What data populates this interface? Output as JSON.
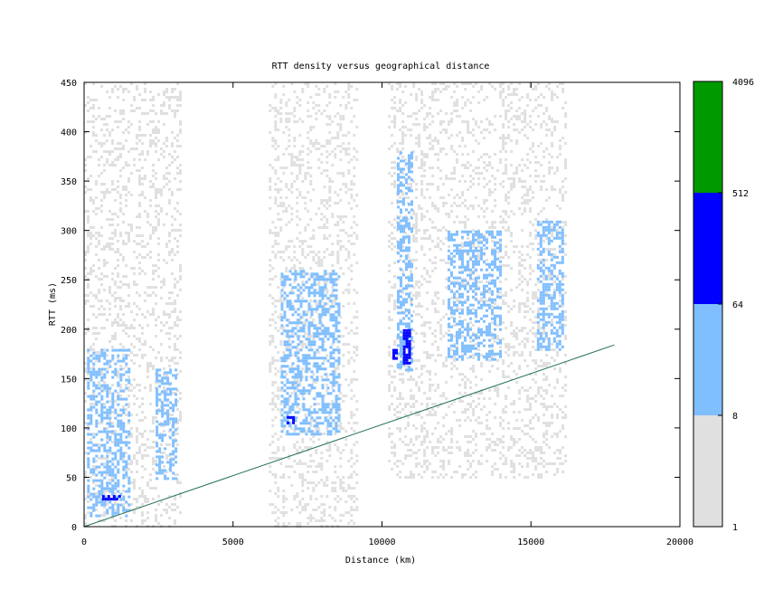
{
  "chart_data": {
    "type": "heatmap",
    "title": "RTT density versus geographical distance",
    "xlabel": "Distance (km)",
    "ylabel": "RTT (ms)",
    "xlim": [
      0,
      20000
    ],
    "ylim": [
      0,
      450
    ],
    "x_ticks": [
      "0",
      "5000",
      "10000",
      "15000",
      "20000"
    ],
    "y_ticks": [
      "0",
      "50",
      "100",
      "150",
      "200",
      "250",
      "300",
      "350",
      "400",
      "450"
    ],
    "grid": false,
    "colorbar": {
      "scale": "log",
      "tick_labels": [
        "1",
        "8",
        "64",
        "512",
        "4096"
      ],
      "bins": [
        {
          "from": 1,
          "to": 8,
          "color": "#e0e0e0"
        },
        {
          "from": 8,
          "to": 64,
          "color": "#80bfff"
        },
        {
          "from": 64,
          "to": 512,
          "color": "#0000ff"
        },
        {
          "from": 512,
          "to": 4096,
          "color": "#009900"
        }
      ]
    },
    "reference_line": {
      "x": [
        0,
        17800
      ],
      "y": [
        0,
        184
      ],
      "color": "#207050"
    },
    "density_regions": [
      {
        "x": [
          0,
          3200
        ],
        "y": [
          0,
          450
        ],
        "level": 1
      },
      {
        "x": [
          6200,
          9200
        ],
        "y": [
          0,
          450
        ],
        "level": 1
      },
      {
        "x": [
          10200,
          16200
        ],
        "y": [
          50,
          450
        ],
        "level": 1
      },
      {
        "x": [
          100,
          1500
        ],
        "y": [
          10,
          180
        ],
        "level": 2
      },
      {
        "x": [
          2400,
          3100
        ],
        "y": [
          50,
          160
        ],
        "level": 2
      },
      {
        "x": [
          6600,
          8600
        ],
        "y": [
          95,
          260
        ],
        "level": 2
      },
      {
        "x": [
          10500,
          11000
        ],
        "y": [
          160,
          380
        ],
        "level": 2
      },
      {
        "x": [
          12200,
          14000
        ],
        "y": [
          170,
          300
        ],
        "level": 2
      },
      {
        "x": [
          15200,
          16100
        ],
        "y": [
          180,
          310
        ],
        "level": 2
      },
      {
        "x": [
          600,
          1200
        ],
        "y": [
          28,
          32
        ],
        "level": 3
      },
      {
        "x": [
          6800,
          7000
        ],
        "y": [
          105,
          112
        ],
        "level": 3
      },
      {
        "x": [
          10700,
          10900
        ],
        "y": [
          165,
          200
        ],
        "level": 3
      },
      {
        "x": [
          10350,
          10450
        ],
        "y": [
          170,
          180
        ],
        "level": 3
      }
    ]
  }
}
